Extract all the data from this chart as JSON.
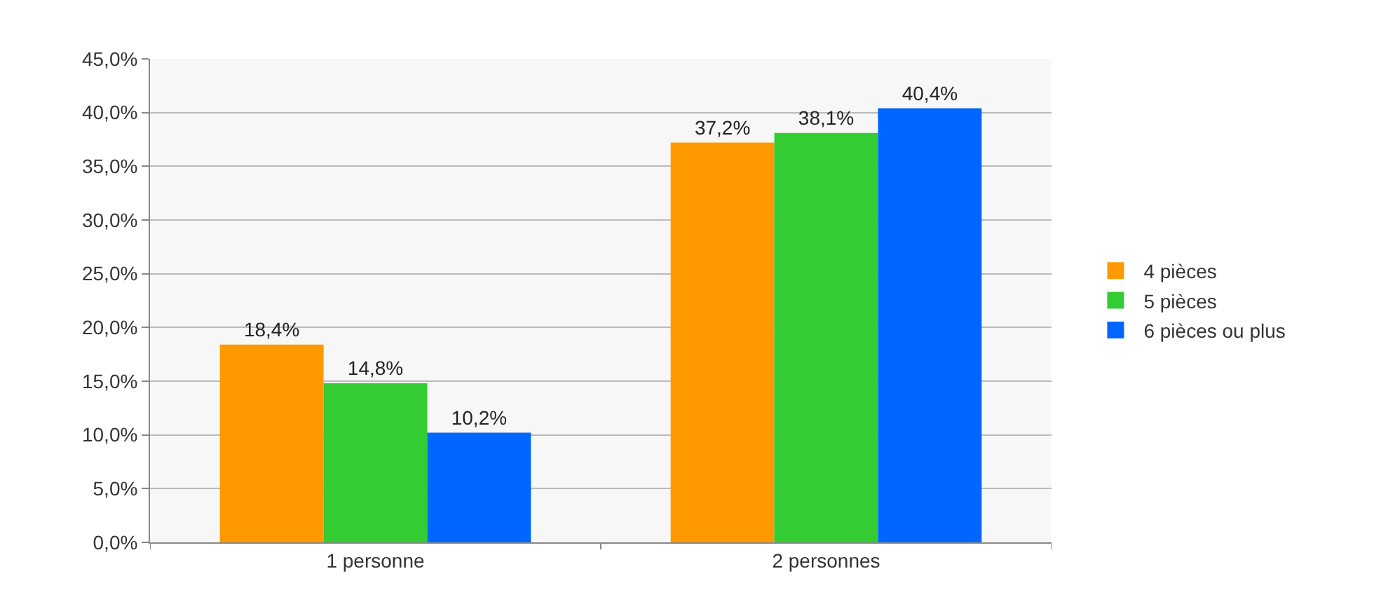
{
  "chart_data": {
    "type": "bar",
    "categories": [
      "1 personne",
      "2 personnes"
    ],
    "series": [
      {
        "name": "4 pièces",
        "color": "#ff9900",
        "values": [
          18.4,
          37.2
        ],
        "value_labels": [
          "18,4%",
          "37,2%"
        ]
      },
      {
        "name": "5 pièces",
        "color": "#33cc33",
        "values": [
          14.8,
          38.1
        ],
        "value_labels": [
          "14,8%",
          "38,1%"
        ]
      },
      {
        "name": "6 pièces ou plus",
        "color": "#0066ff",
        "values": [
          10.2,
          40.4
        ],
        "value_labels": [
          "10,2%",
          "40,4%"
        ]
      }
    ],
    "ylim": [
      0,
      45
    ],
    "yticks": [
      {
        "value": 0,
        "label": "0,0%"
      },
      {
        "value": 5,
        "label": "5,0%"
      },
      {
        "value": 10,
        "label": "10,0%"
      },
      {
        "value": 15,
        "label": "15,0%"
      },
      {
        "value": 20,
        "label": "20,0%"
      },
      {
        "value": 25,
        "label": "25,0%"
      },
      {
        "value": 30,
        "label": "30,0%"
      },
      {
        "value": 35,
        "label": "35,0%"
      },
      {
        "value": 40,
        "label": "40,0%"
      },
      {
        "value": 45,
        "label": "45,0%"
      }
    ],
    "grid": "y",
    "legend": "right"
  }
}
